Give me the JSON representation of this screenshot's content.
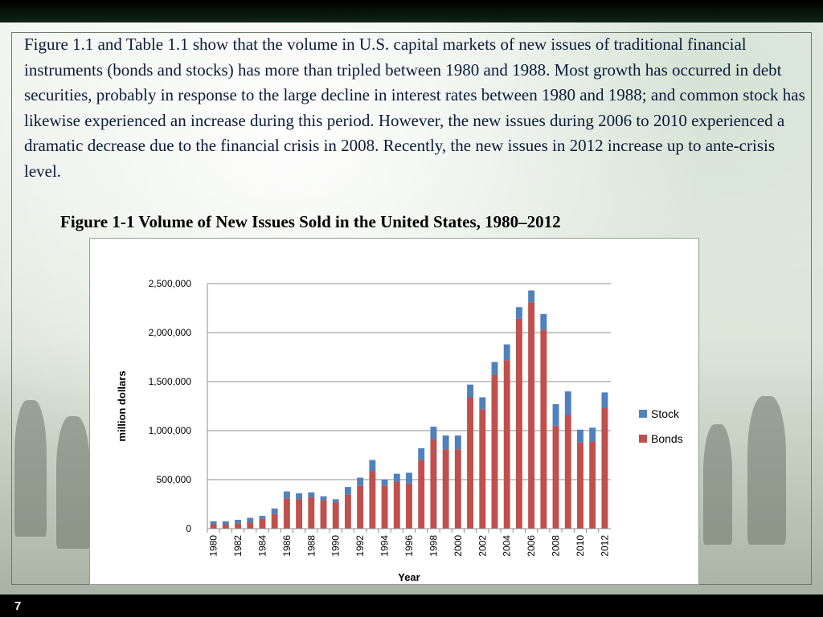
{
  "slide": {
    "body_text": "Figure 1.1 and Table 1.1 show that the volume in U.S. capital markets of new issues of traditional financial instruments (bonds and stocks) has more than tripled between 1980 and 1988. Most growth has occurred in debt securities, probably in response to the large decline in interest rates between 1980 and 1988; and common stock has likewise experienced an increase during this period. However, the new issues during 2006 to 2010 experienced a dramatic decrease due to the financial crisis in 2008. Recently, the new issues in 2012 increase up to ante-crisis level.",
    "figure_title": "Figure 1-1 Volume of New Issues Sold in the United States, 1980–2012",
    "page_number": "7"
  },
  "chart_data": {
    "type": "bar",
    "stacked": true,
    "title": "",
    "xlabel": "Year",
    "ylabel": "million dollars",
    "ylim": [
      0,
      2500000
    ],
    "yticks": [
      0,
      500000,
      1000000,
      1500000,
      2000000,
      2500000
    ],
    "ytick_labels": [
      "0",
      "500,000",
      "1,000,000",
      "1,500,000",
      "2,000,000",
      "2,500,000"
    ],
    "xtick_labels": [
      "1980",
      "1982",
      "1984",
      "1986",
      "1988",
      "1990",
      "1992",
      "1994",
      "1996",
      "1998",
      "2000",
      "2002",
      "2004",
      "2006",
      "2008",
      "2010",
      "2012"
    ],
    "grid": true,
    "legend_position": "right",
    "categories": [
      "1980",
      "1981",
      "1982",
      "1983",
      "1984",
      "1985",
      "1986",
      "1987",
      "1988",
      "1989",
      "1990",
      "1991",
      "1992",
      "1993",
      "1994",
      "1995",
      "1996",
      "1997",
      "1998",
      "1999",
      "2000",
      "2001",
      "2002",
      "2003",
      "2004",
      "2005",
      "2006",
      "2007",
      "2008",
      "2009",
      "2010",
      "2011",
      "2012"
    ],
    "series": [
      {
        "name": "Bonds",
        "color": "#c0504d",
        "values": [
          45000,
          45000,
          55000,
          65000,
          100000,
          150000,
          310000,
          300000,
          320000,
          290000,
          270000,
          350000,
          440000,
          590000,
          440000,
          480000,
          460000,
          700000,
          910000,
          810000,
          810000,
          1340000,
          1220000,
          1570000,
          1720000,
          2140000,
          2310000,
          2030000,
          1050000,
          1160000,
          880000,
          890000,
          1230000
        ]
      },
      {
        "name": "Stock",
        "color": "#4f81bd",
        "values": [
          30000,
          30000,
          35000,
          45000,
          30000,
          55000,
          70000,
          60000,
          50000,
          40000,
          30000,
          75000,
          80000,
          110000,
          60000,
          80000,
          110000,
          120000,
          130000,
          140000,
          140000,
          130000,
          120000,
          130000,
          160000,
          120000,
          120000,
          160000,
          220000,
          240000,
          130000,
          140000,
          160000
        ]
      }
    ]
  }
}
